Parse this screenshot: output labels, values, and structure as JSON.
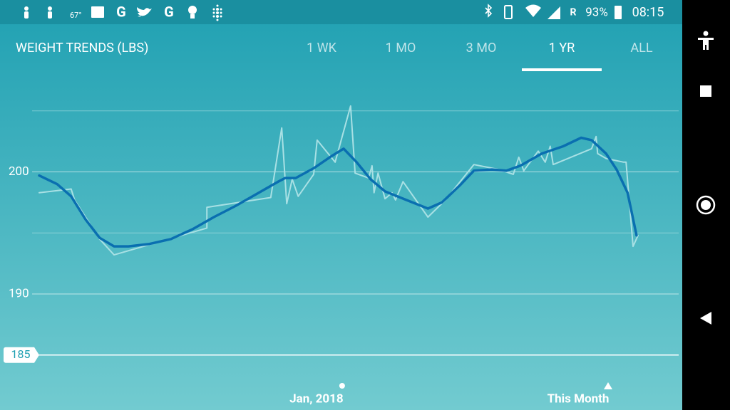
{
  "status_bar": {
    "weather": "67°",
    "roaming": "R",
    "battery": "93%",
    "time": "08:15"
  },
  "header": {
    "title": "WEIGHT TRENDS (LBS)",
    "tabs": [
      "1 WK",
      "1 MO",
      "3 MO",
      "1 YR",
      "ALL"
    ],
    "active_tab": 3
  },
  "chart_data": {
    "type": "line",
    "xlim": [
      0,
      12
    ],
    "ylim": [
      180.5,
      206.5
    ],
    "yticks": [
      190,
      200
    ],
    "minor_gridlines": [
      195,
      205
    ],
    "goal": 185,
    "x_markers": [
      {
        "value": 6.07,
        "label": "Jan, 2018"
      },
      {
        "value": 11.4,
        "label": "This Month"
      }
    ],
    "series": [
      {
        "name": "Weight",
        "color": "#a8e0e4",
        "x": [
          0,
          0.64,
          0.71,
          1.21,
          1.5,
          3.36,
          3.36,
          4.64,
          4.86,
          4.96,
          5.07,
          5.19,
          5.5,
          5.57,
          5.93,
          6.24,
          6.33,
          6.6,
          6.67,
          6.71,
          6.79,
          6.93,
          7.07,
          7.14,
          7.29,
          7.79,
          8.14,
          8.71,
          9.21,
          9.5,
          9.61,
          9.71,
          10,
          10.14,
          10.24,
          10.3,
          11.07,
          11.16,
          11.19,
          11.36,
          11.71,
          11.76,
          11.9,
          12
        ],
        "values": [
          198.3,
          198.6,
          197.7,
          194.5,
          193.2,
          195.4,
          197.1,
          197.9,
          203.6,
          197.4,
          199.4,
          198.0,
          199.8,
          202.6,
          200.8,
          205.4,
          199.9,
          199.5,
          200.5,
          198.3,
          199.9,
          197.8,
          198.3,
          197.7,
          199.2,
          196.3,
          197.7,
          200.6,
          200.2,
          199.8,
          201.2,
          200.1,
          201.7,
          200.8,
          202.1,
          200.6,
          201.9,
          202.9,
          201.5,
          201.1,
          200.8,
          200.8,
          193.9,
          194.8
        ]
      },
      {
        "name": "Trend",
        "color": "#0a6fb0",
        "x": [
          0,
          0.36,
          0.64,
          0.93,
          1.21,
          1.5,
          1.79,
          2.21,
          2.64,
          3.07,
          3.5,
          3.93,
          4.36,
          4.79,
          4.93,
          5.14,
          5.5,
          5.86,
          6.1,
          6.36,
          6.64,
          6.93,
          7.36,
          7.79,
          8.07,
          8.43,
          8.71,
          9.07,
          9.36,
          9.64,
          10.07,
          10.5,
          10.86,
          11.07,
          11.36,
          11.57,
          11.79,
          11.97
        ],
        "values": [
          199.7,
          199.0,
          198.0,
          196.1,
          194.6,
          193.9,
          193.9,
          194.1,
          194.5,
          195.3,
          196.3,
          197.2,
          198.2,
          199.2,
          199.5,
          199.5,
          200.3,
          201.3,
          201.9,
          200.8,
          199.4,
          198.4,
          197.7,
          197.0,
          197.5,
          198.9,
          200.1,
          200.2,
          200.1,
          200.5,
          201.5,
          202.1,
          202.8,
          202.6,
          201.5,
          200.2,
          198.3,
          194.8
        ]
      }
    ]
  }
}
